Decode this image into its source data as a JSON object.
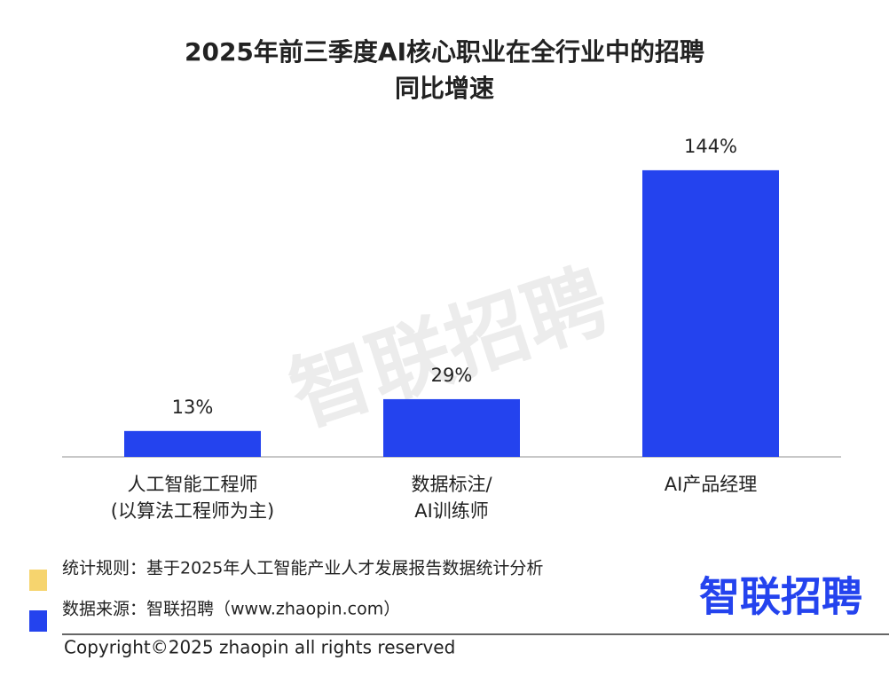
{
  "chart_data": {
    "type": "bar",
    "title": [
      "2025年前三季度AI核心职业在全行业中的招聘",
      "同比增速"
    ],
    "categories": [
      [
        "人工智能工程师",
        "(以算法工程师为主)"
      ],
      [
        "数据标注/",
        "AI训练师"
      ],
      [
        "AI产品经理"
      ]
    ],
    "values": [
      13,
      29,
      144
    ],
    "value_labels": [
      "13%",
      "29%",
      "144%"
    ],
    "color": "#2443ee",
    "ylim": [
      0,
      160
    ]
  },
  "watermark": "智联招聘",
  "notes": [
    {
      "text": "统计规则：基于2025年人工智能产业人才发展报告数据统计分析",
      "color": "#f6d46e"
    },
    {
      "text": "数据来源：智联招聘（www.zhaopin.com）",
      "color": "#2443ee"
    }
  ],
  "logo": "智联招聘",
  "copyright": "Copyright©2025 zhaopin all rights reserved"
}
